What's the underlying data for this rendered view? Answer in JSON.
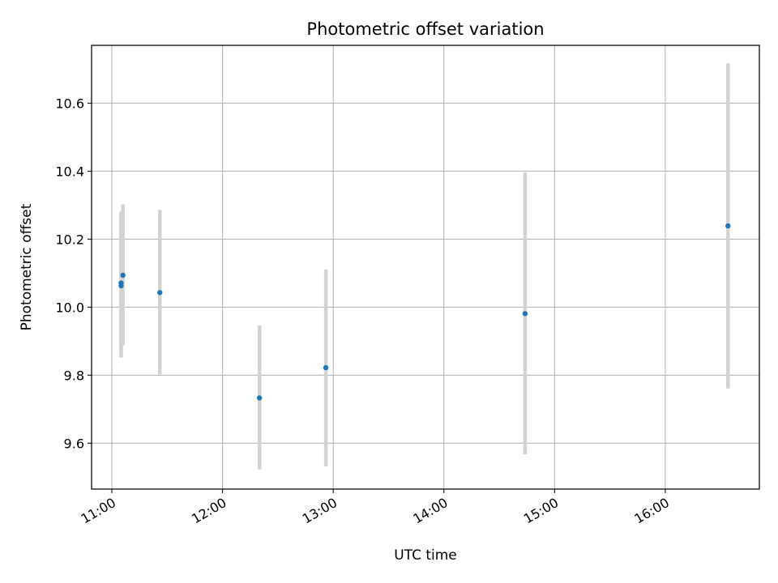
{
  "chart_data": {
    "type": "scatter",
    "title": "Photometric offset variation",
    "xlabel": "UTC time",
    "ylabel": "Photometric offset",
    "x_tick_labels": [
      "11:00",
      "12:00",
      "13:00",
      "14:00",
      "15:00",
      "16:00"
    ],
    "x_tick_values": [
      "11:00",
      "12:00",
      "13:00",
      "14:00",
      "15:00",
      "16:00"
    ],
    "y_ticks": [
      9.6,
      9.8,
      10.0,
      10.2,
      10.4,
      10.6
    ],
    "xlim": [
      "10:49",
      "16:51"
    ],
    "ylim": [
      9.465,
      10.77
    ],
    "grid": true,
    "series": [
      {
        "x": [
          "11:05",
          "11:05",
          "11:06",
          "11:26",
          "12:20",
          "12:56",
          "14:44",
          "16:34"
        ],
        "y": [
          10.071,
          10.063,
          10.094,
          10.043,
          9.733,
          9.822,
          9.981,
          10.239
        ],
        "yerr_low": [
          9.862,
          9.852,
          9.888,
          9.802,
          9.523,
          9.532,
          9.567,
          9.761
        ],
        "yerr_high": [
          10.281,
          10.274,
          10.302,
          10.286,
          9.946,
          10.111,
          10.396,
          10.717
        ]
      }
    ],
    "marker_color": "#1f77b4",
    "errorbar_color": "#d3d3d3"
  }
}
